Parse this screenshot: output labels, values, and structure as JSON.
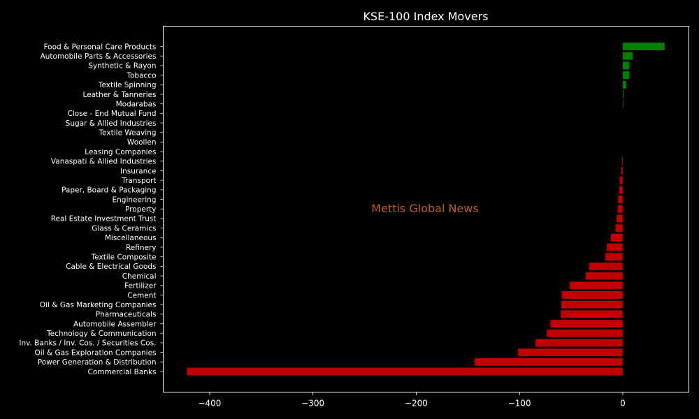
{
  "chart_data": {
    "type": "bar",
    "orientation": "horizontal",
    "title": "KSE-100 Index Movers",
    "xlabel": "",
    "ylabel": "",
    "xlim": [
      -445,
      64
    ],
    "xticks": [
      -400,
      -300,
      -200,
      -100,
      0
    ],
    "xtick_labels": [
      "−400",
      "−300",
      "−200",
      "−100",
      "0"
    ],
    "watermark": "Mettis Global News",
    "colors": {
      "positive": "#008000",
      "negative": "#c00000",
      "background": "#000000",
      "text": "#ffffff",
      "watermark": "#c0601c"
    },
    "categories": [
      "Food & Personal Care Products",
      "Automobile Parts & Accessories",
      "Synthetic & Rayon",
      "Tobacco",
      "Textile Spinning",
      "Leather & Tanneries",
      "Modarabas",
      "Close - End Mutual Fund",
      "Sugar & Allied Industries",
      "Textile Weaving",
      "Woollen",
      "Leasing Companies",
      "Vanaspati & Allied Industries",
      "Insurance",
      "Transport",
      "Paper, Board & Packaging",
      "Engineering",
      "Property",
      "Real Estate Investment Trust",
      "Glass & Ceramics",
      "Miscellaneous",
      "Refinery",
      "Textile Composite",
      "Cable & Electrical Goods",
      "Chemical",
      "Fertilizer",
      "Cement",
      "Oil & Gas Marketing Companies",
      "Pharmaceuticals",
      "Automobile Assembler",
      "Technology & Communication",
      "Inv. Banks / Inv. Cos. / Securities Cos.",
      "Oil & Gas Exploration Companies",
      "Power Generation & Distribution",
      "Commercial Banks"
    ],
    "values": [
      40.5,
      9.5,
      6.5,
      6.5,
      3.5,
      0.8,
      0.5,
      0,
      0,
      0,
      0,
      0,
      -0.8,
      -1.5,
      -3.0,
      -3.5,
      -4.5,
      -5.0,
      -6.0,
      -7.0,
      -11.5,
      -15.5,
      -17.0,
      -32.5,
      -36.0,
      -51.5,
      -59.0,
      -59.5,
      -60.0,
      -70.0,
      -73.5,
      -84.5,
      -101.5,
      -143.5,
      -422.0
    ]
  }
}
